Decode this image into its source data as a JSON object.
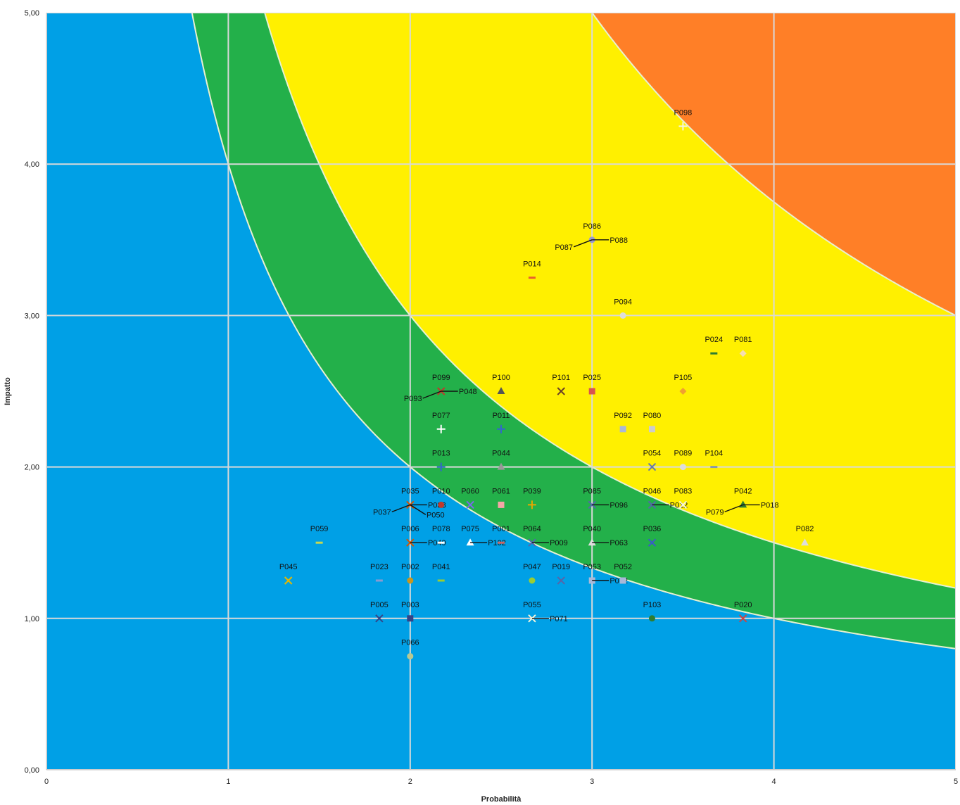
{
  "chart_data": {
    "type": "scatter",
    "xlabel": "Probabilità",
    "ylabel": "Impatto",
    "xlim": [
      0,
      5
    ],
    "ylim": [
      0,
      5
    ],
    "x_ticks": [
      "0",
      "1",
      "2",
      "3",
      "4",
      "5"
    ],
    "y_ticks": [
      "0,00",
      "1,00",
      "2,00",
      "3,00",
      "4,00",
      "5,00"
    ],
    "grid": true,
    "risk_zones": [
      {
        "zone": "low",
        "color": "#00A0E6",
        "threshold": 0
      },
      {
        "zone": "medium-low",
        "color": "#23B04A",
        "threshold": 4
      },
      {
        "zone": "medium-high",
        "color": "#FFF000",
        "threshold": 6
      },
      {
        "zone": "high",
        "color": "#FF7F27",
        "threshold": 15
      }
    ],
    "points": [
      {
        "label": "P098",
        "x": 3.5,
        "y": 4.25,
        "color": "#f5f5dc",
        "marker": "plus"
      },
      {
        "label": "P086",
        "x": 3.0,
        "y": 3.5,
        "color": "#9999cc",
        "marker": "dot"
      },
      {
        "label": "P088",
        "x": 3.0,
        "y": 3.5,
        "color": "#9999cc",
        "marker": "dot"
      },
      {
        "label": "P087",
        "x": 3.0,
        "y": 3.5,
        "color": "#9999cc",
        "marker": "dot"
      },
      {
        "label": "P014",
        "x": 2.67,
        "y": 3.25,
        "color": "#e8602c",
        "marker": "dash"
      },
      {
        "label": "P094",
        "x": 3.17,
        "y": 3.0,
        "color": "#ddd",
        "marker": "dot"
      },
      {
        "label": "P024",
        "x": 3.67,
        "y": 2.75,
        "color": "#2e7d32",
        "marker": "dash"
      },
      {
        "label": "P081",
        "x": 3.83,
        "y": 2.75,
        "color": "#f5deb3",
        "marker": "diamond"
      },
      {
        "label": "P101",
        "x": 2.83,
        "y": 2.5,
        "color": "#6b4226",
        "marker": "x"
      },
      {
        "label": "P025",
        "x": 3.0,
        "y": 2.5,
        "color": "#d9534f",
        "marker": "square"
      },
      {
        "label": "P105",
        "x": 3.5,
        "y": 2.5,
        "color": "#f0a030",
        "marker": "diamond"
      },
      {
        "label": "P100",
        "x": 2.5,
        "y": 2.5,
        "color": "#555555",
        "marker": "triangle"
      },
      {
        "label": "P099",
        "x": 2.17,
        "y": 2.5,
        "color": "#c0392b",
        "marker": "x"
      },
      {
        "label": "P048",
        "x": 2.17,
        "y": 2.5,
        "color": "#c0392b",
        "marker": "x"
      },
      {
        "label": "P093",
        "x": 2.17,
        "y": 2.5,
        "color": "#c0392b",
        "marker": "x"
      },
      {
        "label": "P077",
        "x": 2.17,
        "y": 2.25,
        "color": "#ffffff",
        "marker": "plus"
      },
      {
        "label": "P011",
        "x": 2.5,
        "y": 2.25,
        "color": "#3366cc",
        "marker": "plus"
      },
      {
        "label": "P092",
        "x": 3.17,
        "y": 2.25,
        "color": "#aab8d8",
        "marker": "square"
      },
      {
        "label": "P080",
        "x": 3.33,
        "y": 2.25,
        "color": "#cccccc",
        "marker": "square"
      },
      {
        "label": "P013",
        "x": 2.17,
        "y": 2.0,
        "color": "#3366cc",
        "marker": "plus"
      },
      {
        "label": "P044",
        "x": 2.5,
        "y": 2.0,
        "color": "#999999",
        "marker": "triangle"
      },
      {
        "label": "P054",
        "x": 3.33,
        "y": 2.0,
        "color": "#6677aa",
        "marker": "x"
      },
      {
        "label": "P089",
        "x": 3.5,
        "y": 2.0,
        "color": "#dddddd",
        "marker": "dot"
      },
      {
        "label": "P104",
        "x": 3.67,
        "y": 2.0,
        "color": "#8899aa",
        "marker": "dash"
      },
      {
        "label": "P035",
        "x": 2.0,
        "y": 1.75,
        "color": "#d35400",
        "marker": "x"
      },
      {
        "label": "P038",
        "x": 2.0,
        "y": 1.75,
        "color": "#d35400",
        "marker": "x"
      },
      {
        "label": "P037",
        "x": 2.0,
        "y": 1.75,
        "color": "#d35400",
        "marker": "x"
      },
      {
        "label": "P050",
        "x": 2.0,
        "y": 1.75,
        "color": "#d35400",
        "marker": "x"
      },
      {
        "label": "P010",
        "x": 2.17,
        "y": 1.75,
        "color": "#c0392b",
        "marker": "dot"
      },
      {
        "label": "P060",
        "x": 2.33,
        "y": 1.75,
        "color": "#7b68ee",
        "marker": "x"
      },
      {
        "label": "P061",
        "x": 2.5,
        "y": 1.75,
        "color": "#f4a6a6",
        "marker": "square"
      },
      {
        "label": "P039",
        "x": 2.67,
        "y": 1.75,
        "color": "#e6a800",
        "marker": "plus"
      },
      {
        "label": "P085",
        "x": 3.0,
        "y": 1.75,
        "color": "#5566aa",
        "marker": "x"
      },
      {
        "label": "P096",
        "x": 3.0,
        "y": 1.75,
        "color": "#5566aa",
        "marker": "x"
      },
      {
        "label": "P046",
        "x": 3.33,
        "y": 1.75,
        "color": "#5566aa",
        "marker": "x"
      },
      {
        "label": "P012",
        "x": 3.33,
        "y": 1.75,
        "color": "#5566aa",
        "marker": "x"
      },
      {
        "label": "P083",
        "x": 3.5,
        "y": 1.75,
        "color": "#f5f5dc",
        "marker": "x"
      },
      {
        "label": "P042",
        "x": 3.83,
        "y": 1.75,
        "color": "#2e7d32",
        "marker": "triangle"
      },
      {
        "label": "P018",
        "x": 3.83,
        "y": 1.75,
        "color": "#2e7d32",
        "marker": "triangle"
      },
      {
        "label": "P079",
        "x": 3.83,
        "y": 1.75,
        "color": "#2e7d32",
        "marker": "triangle"
      },
      {
        "label": "P059",
        "x": 1.5,
        "y": 1.5,
        "color": "#c8d850",
        "marker": "dash"
      },
      {
        "label": "P006",
        "x": 2.0,
        "y": 1.5,
        "color": "#d35400",
        "marker": "x"
      },
      {
        "label": "P049",
        "x": 2.0,
        "y": 1.5,
        "color": "#d35400",
        "marker": "x"
      },
      {
        "label": "P078",
        "x": 2.17,
        "y": 1.5,
        "color": "#ffffff",
        "marker": "dash"
      },
      {
        "label": "P075",
        "x": 2.33,
        "y": 1.5,
        "color": "#ffffff",
        "marker": "triangle"
      },
      {
        "label": "P102",
        "x": 2.33,
        "y": 1.5,
        "color": "#ffffff",
        "marker": "triangle"
      },
      {
        "label": "P001",
        "x": 2.5,
        "y": 1.5,
        "color": "#cc6666",
        "marker": "dash"
      },
      {
        "label": "P064",
        "x": 2.67,
        "y": 1.5,
        "color": "#5566aa",
        "marker": "x"
      },
      {
        "label": "P009",
        "x": 2.67,
        "y": 1.5,
        "color": "#5566aa",
        "marker": "x"
      },
      {
        "label": "P040",
        "x": 3.0,
        "y": 1.5,
        "color": "#dddddd",
        "marker": "triangle"
      },
      {
        "label": "P063",
        "x": 3.0,
        "y": 1.5,
        "color": "#dddddd",
        "marker": "triangle"
      },
      {
        "label": "P036",
        "x": 3.33,
        "y": 1.5,
        "color": "#3a5cc8",
        "marker": "x"
      },
      {
        "label": "P082",
        "x": 4.17,
        "y": 1.5,
        "color": "#dddddd",
        "marker": "triangle"
      },
      {
        "label": "P045",
        "x": 1.33,
        "y": 1.25,
        "color": "#e6b800",
        "marker": "x"
      },
      {
        "label": "P023",
        "x": 1.83,
        "y": 1.25,
        "color": "#8a9ad0",
        "marker": "dash"
      },
      {
        "label": "P002",
        "x": 2.0,
        "y": 1.25,
        "color": "#c8961e",
        "marker": "dot"
      },
      {
        "label": "P041",
        "x": 2.17,
        "y": 1.25,
        "color": "#9acd32",
        "marker": "dash"
      },
      {
        "label": "P047",
        "x": 2.67,
        "y": 1.25,
        "color": "#9acd32",
        "marker": "dot"
      },
      {
        "label": "P019",
        "x": 2.83,
        "y": 1.25,
        "color": "#5566aa",
        "marker": "x"
      },
      {
        "label": "P053",
        "x": 3.0,
        "y": 1.25,
        "color": "#aab8d8",
        "marker": "square"
      },
      {
        "label": "P072",
        "x": 3.0,
        "y": 1.25,
        "color": "#aab8d8",
        "marker": "square"
      },
      {
        "label": "P052",
        "x": 3.17,
        "y": 1.25,
        "color": "#aab8d8",
        "marker": "square"
      },
      {
        "label": "P005",
        "x": 1.83,
        "y": 1.0,
        "color": "#334488",
        "marker": "x"
      },
      {
        "label": "P003",
        "x": 2.0,
        "y": 1.0,
        "color": "#334488",
        "marker": "square"
      },
      {
        "label": "P055",
        "x": 2.67,
        "y": 1.0,
        "color": "#f5f5dc",
        "marker": "x"
      },
      {
        "label": "P071",
        "x": 2.67,
        "y": 1.0,
        "color": "#f5f5dc",
        "marker": "x"
      },
      {
        "label": "P103",
        "x": 3.33,
        "y": 1.0,
        "color": "#2e7d32",
        "marker": "dot"
      },
      {
        "label": "P020",
        "x": 3.83,
        "y": 1.0,
        "color": "#cc4444",
        "marker": "x"
      },
      {
        "label": "P066",
        "x": 2.0,
        "y": 0.75,
        "color": "#b8c890",
        "marker": "dot"
      }
    ]
  }
}
